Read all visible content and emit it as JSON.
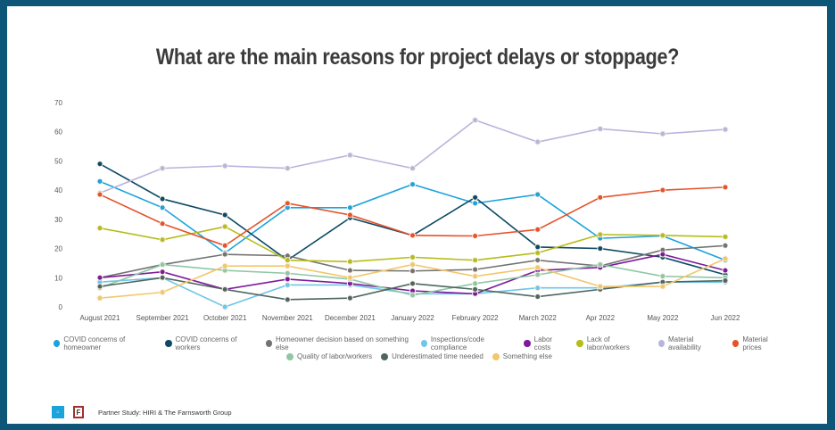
{
  "chart_data": {
    "type": "line",
    "title": "What are the main reasons for project delays or stoppage?",
    "xlabel": "",
    "ylabel": "",
    "ylim": [
      0,
      70
    ],
    "yticks": [
      "0",
      "10",
      "20",
      "30",
      "40",
      "50",
      "60",
      "70"
    ],
    "grid": false,
    "legend_position": "bottom",
    "categories": [
      "August 2021",
      "September 2021",
      "October 2021",
      "November 2021",
      "December 2021",
      "January 2022",
      "February 2022",
      "March 2022",
      "Apr 2022",
      "May 2022",
      "Jun 2022"
    ],
    "series": [
      {
        "name": "COVID concerns of homeowner",
        "color": "#1ba3dc",
        "values": [
          43,
          34,
          18.5,
          34,
          34,
          42,
          35.5,
          38.5,
          23.5,
          24.3,
          16
        ]
      },
      {
        "name": "COVID concerns of workers",
        "color": "#0d4a66",
        "values": [
          49,
          37,
          31.5,
          16,
          30.5,
          24.5,
          37.5,
          20.5,
          20,
          17,
          11
        ]
      },
      {
        "name": "Homeowner decision based on something else",
        "color": "#737373",
        "values": [
          10,
          14.5,
          18,
          17.5,
          12.5,
          12.3,
          12.8,
          16,
          14,
          19.5,
          21
        ]
      },
      {
        "name": "Inspections/code compliance",
        "color": "#6ec6ea",
        "values": [
          8.5,
          10,
          0,
          7.5,
          7.5,
          4.5,
          4.5,
          6.5,
          6.5,
          8.5,
          8.5
        ]
      },
      {
        "name": "Labor costs",
        "color": "#7e1a9a",
        "values": [
          10,
          12,
          6,
          9.5,
          8,
          5.5,
          4.5,
          12.5,
          13.5,
          18,
          12.5
        ]
      },
      {
        "name": "Lack of labor/workers",
        "color": "#b5bd1a",
        "values": [
          27,
          23,
          27.5,
          16,
          15.5,
          17,
          16,
          18.5,
          24.8,
          24.5,
          24
        ]
      },
      {
        "name": "Material availability",
        "color": "#b7b5dc",
        "values": [
          39,
          47.5,
          48.3,
          47.5,
          52,
          47.5,
          64,
          56.5,
          61,
          59.3,
          60.8
        ]
      },
      {
        "name": "Material prices",
        "color": "#e5522b",
        "values": [
          38.5,
          28.5,
          21,
          35.5,
          31.5,
          24.5,
          24.3,
          26.5,
          37.5,
          40,
          41
        ]
      },
      {
        "name": "Quality of labor/workers",
        "color": "#8fc7a6",
        "values": [
          6.5,
          14.5,
          12.5,
          11.5,
          9.5,
          4,
          8,
          11,
          14.5,
          10.5,
          10
        ]
      },
      {
        "name": "Underestimated time needed",
        "color": "#4f6660",
        "values": [
          7,
          10,
          6,
          2.5,
          3,
          8,
          6,
          3.5,
          6,
          8.5,
          9
        ]
      },
      {
        "name": "Something else",
        "color": "#f2c76a",
        "values": [
          3,
          5,
          14,
          14,
          10,
          14.5,
          10.5,
          13.5,
          7,
          7,
          16.5
        ]
      }
    ]
  },
  "footer": {
    "text": "Partner Study:  HIRI & The Farnsworth Group",
    "logo1": "HIRI",
    "logo2": "F"
  }
}
